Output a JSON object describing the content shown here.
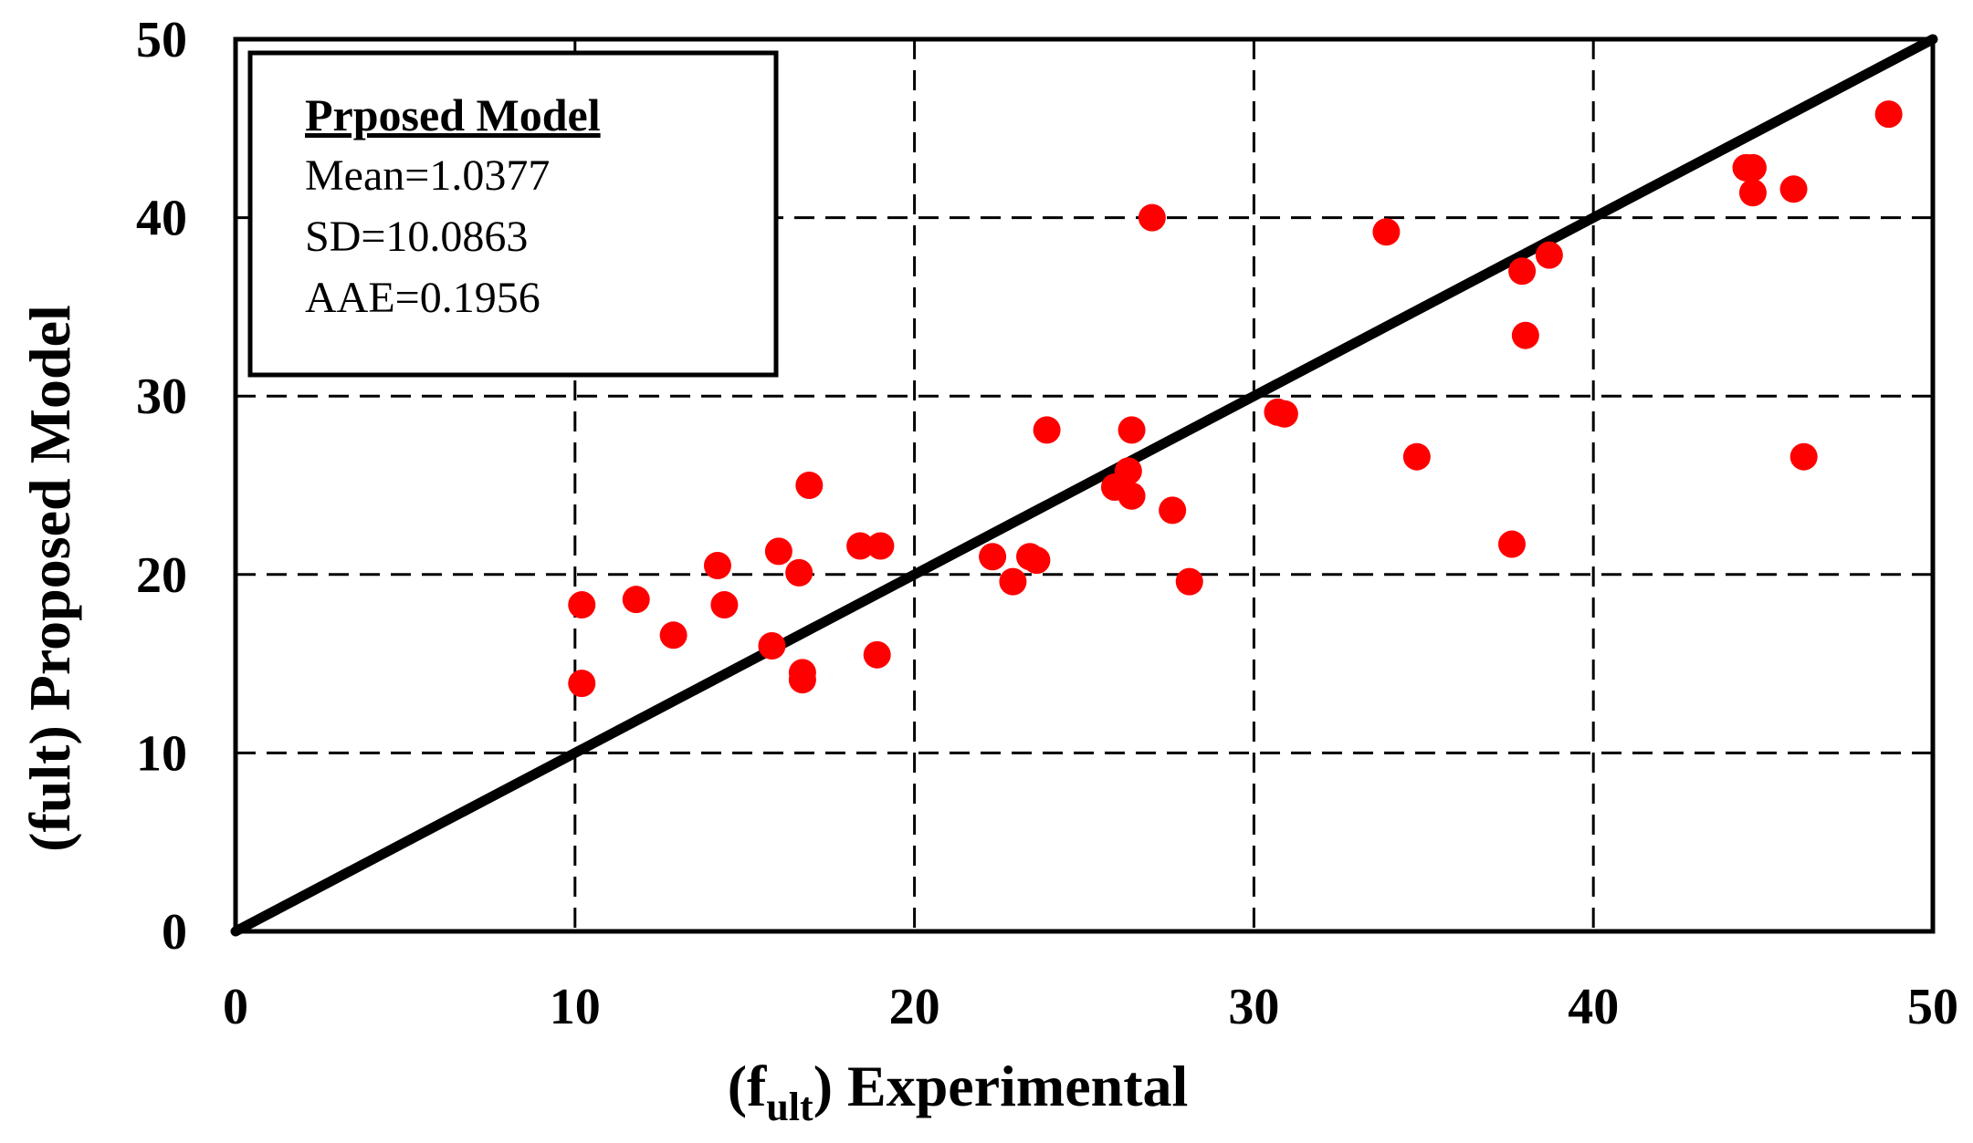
{
  "chart_data": {
    "type": "scatter",
    "xlabel_main": "(f",
    "xlabel_sub": "ult",
    "xlabel_rest": ") Experimental",
    "ylabel": "(fult) Proposed Model",
    "xlim": [
      0,
      50
    ],
    "ylim": [
      0,
      50
    ],
    "xticks": [
      "0",
      "10",
      "20",
      "30",
      "40",
      "50"
    ],
    "yticks": [
      "0",
      "10",
      "20",
      "30",
      "40",
      "50"
    ],
    "grid": true,
    "reference_line": {
      "label": "y = x",
      "from": [
        0,
        0
      ],
      "to": [
        50,
        50
      ],
      "color": "#000000"
    },
    "series": [
      {
        "name": "Proposed Model",
        "color": "#ff0000",
        "points": [
          [
            10.2,
            18.3
          ],
          [
            10.2,
            13.9
          ],
          [
            11.8,
            18.6
          ],
          [
            12.9,
            16.6
          ],
          [
            14.2,
            20.5
          ],
          [
            14.4,
            18.3
          ],
          [
            15.8,
            16.0
          ],
          [
            16.0,
            21.3
          ],
          [
            16.6,
            20.1
          ],
          [
            16.7,
            14.5
          ],
          [
            16.7,
            14.1
          ],
          [
            16.9,
            25.0
          ],
          [
            18.4,
            21.6
          ],
          [
            18.9,
            15.5
          ],
          [
            19.0,
            21.6
          ],
          [
            22.3,
            21.0
          ],
          [
            22.9,
            19.6
          ],
          [
            23.4,
            21.0
          ],
          [
            23.6,
            20.8
          ],
          [
            23.9,
            28.1
          ],
          [
            25.9,
            24.9
          ],
          [
            26.3,
            25.8
          ],
          [
            26.4,
            24.4
          ],
          [
            26.4,
            28.1
          ],
          [
            27.0,
            40.0
          ],
          [
            27.6,
            23.6
          ],
          [
            28.1,
            19.6
          ],
          [
            30.7,
            29.1
          ],
          [
            30.9,
            29.0
          ],
          [
            33.9,
            39.2
          ],
          [
            34.8,
            26.6
          ],
          [
            37.6,
            21.7
          ],
          [
            37.9,
            37.0
          ],
          [
            38.0,
            33.4
          ],
          [
            38.7,
            37.9
          ],
          [
            44.5,
            42.8
          ],
          [
            44.7,
            42.8
          ],
          [
            44.7,
            41.4
          ],
          [
            45.9,
            41.6
          ],
          [
            46.2,
            26.6
          ],
          [
            48.7,
            45.8
          ]
        ]
      }
    ],
    "legend": {
      "title": "Prposed Model",
      "lines": [
        "Mean=1.0377",
        "SD=10.0863",
        "AAE=0.1956"
      ],
      "placement": "top-left"
    }
  }
}
